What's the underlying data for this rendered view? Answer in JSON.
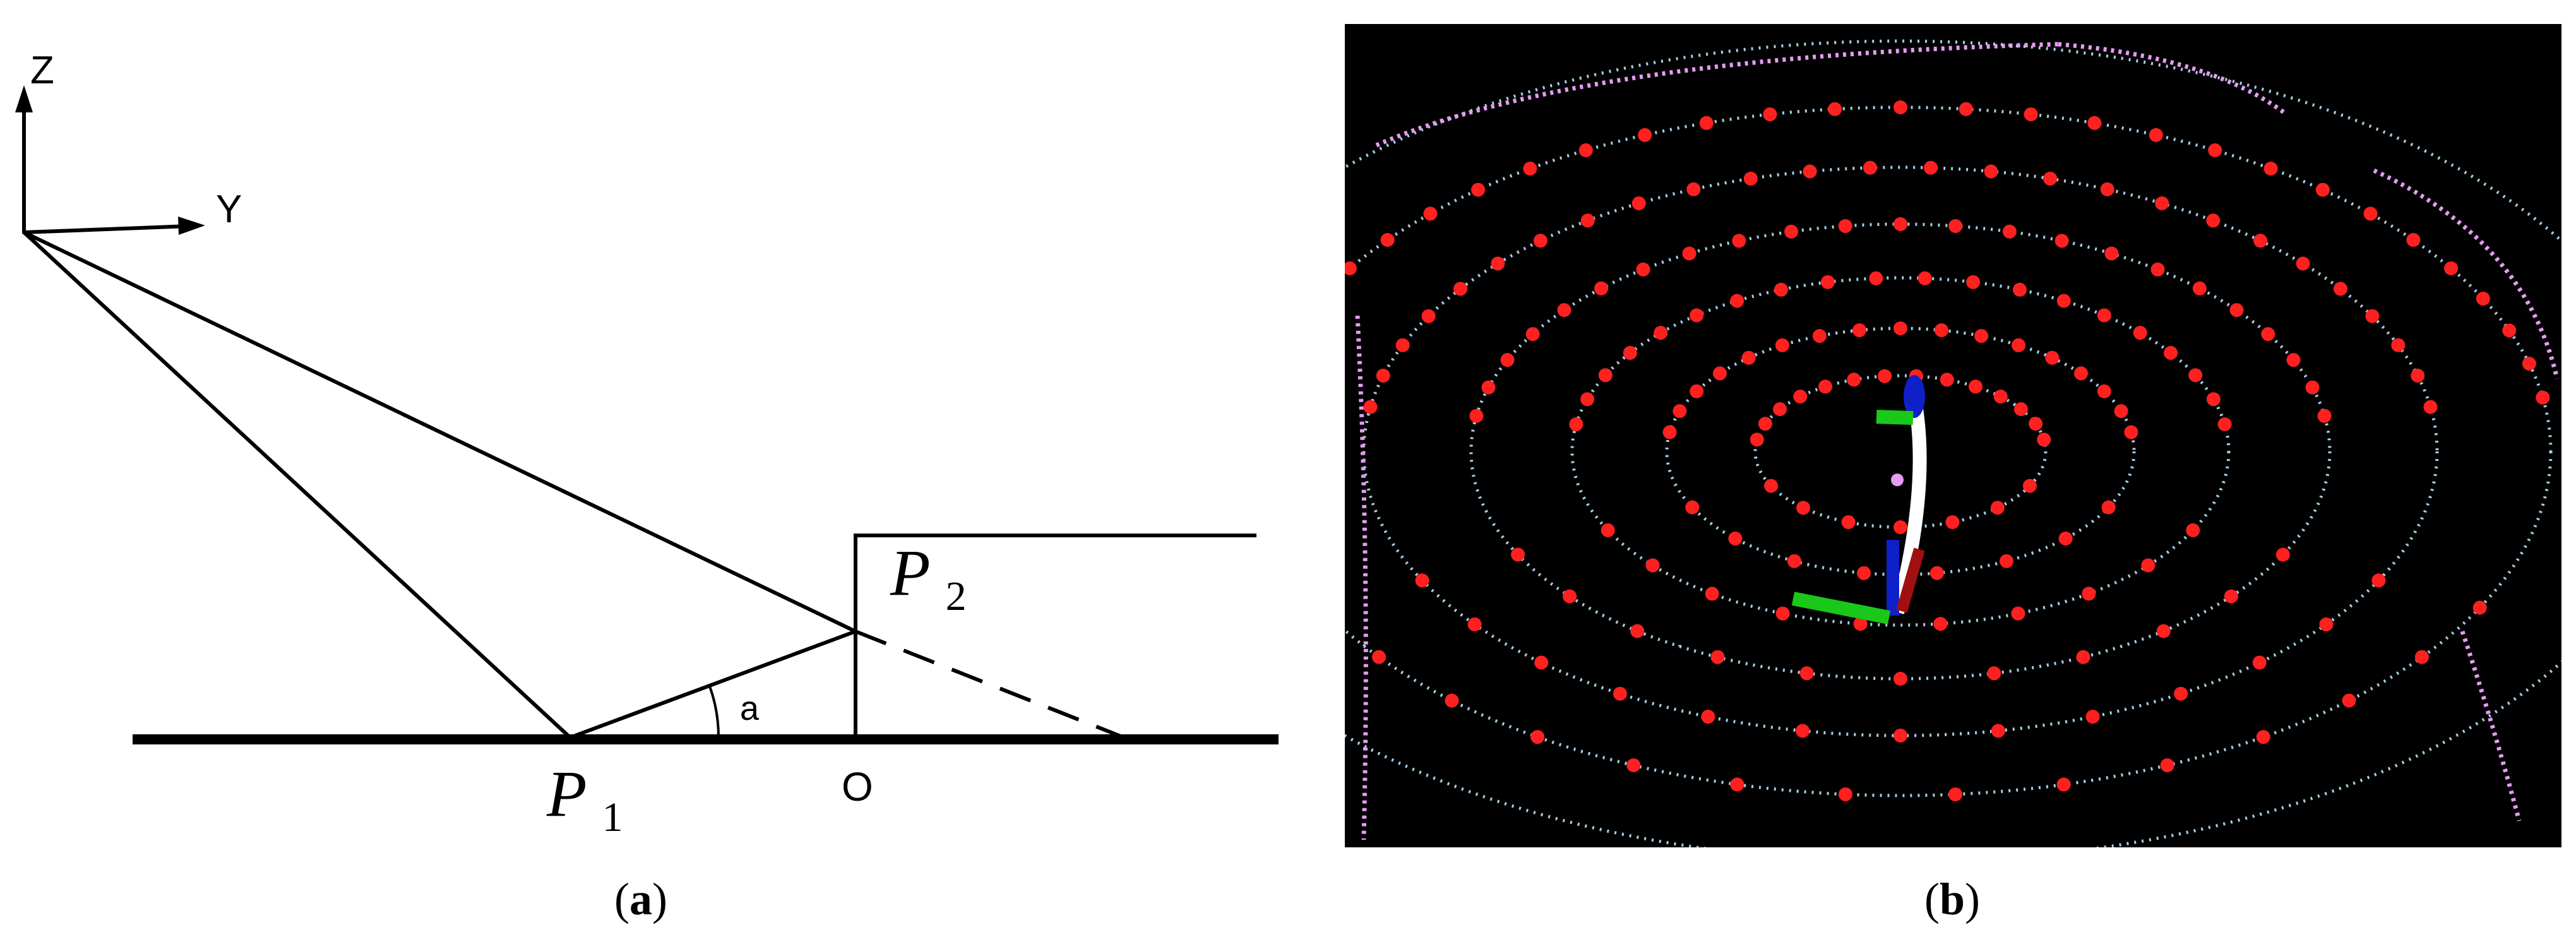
{
  "panel_a": {
    "axis_z": "Z",
    "axis_y": "Y",
    "p1": {
      "letter": "P",
      "subscript": "1"
    },
    "p2": {
      "letter": "P",
      "subscript": "2"
    },
    "origin": "O",
    "angle": "a",
    "caption_open": "(",
    "caption_letter": "a",
    "caption_close": ")"
  },
  "panel_b": {
    "caption_open": "(",
    "caption_letter": "b",
    "caption_close": ")",
    "colors": {
      "background": "#000000",
      "ring_points": "#b8e4ff",
      "ring_points_far": "#e59cf2",
      "markers": "#ff2020",
      "sensor_body": "#ffffff",
      "axis_blue": "#1020c8",
      "axis_green": "#19c819",
      "axis_red": "#a01010"
    }
  }
}
